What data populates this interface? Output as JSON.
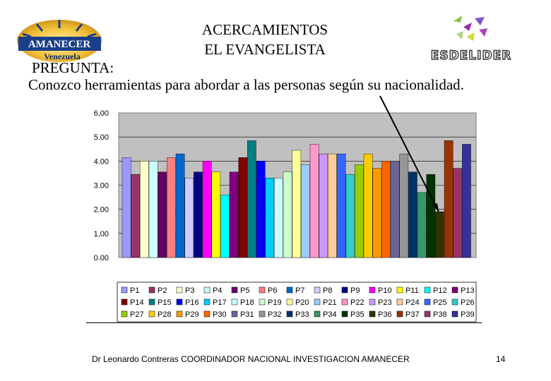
{
  "slide": {
    "title_line1": "ACERCAMIENTOS",
    "title_line2": "EL EVANGELISTA",
    "question_label": "PREGUNTA:",
    "question_text": "Conozco herramientas para abordar a las personas según su nacionalidad.",
    "footer_text": "Dr Leonardo Contreras COORDINADOR NACIONAL INVESTIGACION AMANECER",
    "page_number": "14"
  },
  "logos": {
    "left_text_main": "AMANECER",
    "left_text_sub": "Venezuela",
    "right_text": "ESDELIDER"
  },
  "chart_data": {
    "type": "bar",
    "title": "",
    "xlabel": "",
    "ylabel": "",
    "ylim": [
      0,
      6
    ],
    "y_ticks": [
      "0.00",
      "1,00",
      "2.00",
      "3.00",
      "4.00",
      "5.00",
      "6,00"
    ],
    "grid": true,
    "legend_position": "bottom",
    "series": [
      {
        "name": "P1",
        "value": 4.15,
        "color": "#9999ff"
      },
      {
        "name": "P2",
        "value": 3.45,
        "color": "#993366"
      },
      {
        "name": "P3",
        "value": 4.0,
        "color": "#ffffcc"
      },
      {
        "name": "P4",
        "value": 4.0,
        "color": "#ccffff"
      },
      {
        "name": "P5",
        "value": 3.55,
        "color": "#660066"
      },
      {
        "name": "P6",
        "value": 4.15,
        "color": "#ff8080"
      },
      {
        "name": "P7",
        "value": 4.3,
        "color": "#0066cc"
      },
      {
        "name": "P8",
        "value": 3.3,
        "color": "#ccccff"
      },
      {
        "name": "P9",
        "value": 3.55,
        "color": "#000080"
      },
      {
        "name": "P10",
        "value": 4.0,
        "color": "#ff00ff"
      },
      {
        "name": "P11",
        "value": 3.55,
        "color": "#ffff00"
      },
      {
        "name": "P12",
        "value": 2.6,
        "color": "#00ffff"
      },
      {
        "name": "P13",
        "value": 3.55,
        "color": "#800080"
      },
      {
        "name": "P14",
        "value": 4.15,
        "color": "#800000"
      },
      {
        "name": "P15",
        "value": 4.85,
        "color": "#008080"
      },
      {
        "name": "P16",
        "value": 4.0,
        "color": "#0000ff"
      },
      {
        "name": "P17",
        "value": 3.3,
        "color": "#00ccff"
      },
      {
        "name": "P18",
        "value": 3.3,
        "color": "#ccffff"
      },
      {
        "name": "P19",
        "value": 3.55,
        "color": "#ccffcc"
      },
      {
        "name": "P20",
        "value": 4.45,
        "color": "#ffff99"
      },
      {
        "name": "P21",
        "value": 3.85,
        "color": "#99ccff"
      },
      {
        "name": "P22",
        "value": 4.7,
        "color": "#ff99cc"
      },
      {
        "name": "P23",
        "value": 4.3,
        "color": "#cc99ff"
      },
      {
        "name": "P24",
        "value": 4.3,
        "color": "#ffcc99"
      },
      {
        "name": "P25",
        "value": 4.3,
        "color": "#3366ff"
      },
      {
        "name": "P26",
        "value": 3.45,
        "color": "#33cccc"
      },
      {
        "name": "P27",
        "value": 3.85,
        "color": "#99cc00"
      },
      {
        "name": "P28",
        "value": 4.3,
        "color": "#ffcc00"
      },
      {
        "name": "P29",
        "value": 3.7,
        "color": "#ff9900"
      },
      {
        "name": "P30",
        "value": 4.0,
        "color": "#ff6600"
      },
      {
        "name": "P31",
        "value": 4.0,
        "color": "#666699"
      },
      {
        "name": "P32",
        "value": 4.3,
        "color": "#969696"
      },
      {
        "name": "P33",
        "value": 3.55,
        "color": "#003366"
      },
      {
        "name": "P34",
        "value": 2.7,
        "color": "#339966"
      },
      {
        "name": "P35",
        "value": 3.45,
        "color": "#003300"
      },
      {
        "name": "P36",
        "value": 1.9,
        "color": "#333300"
      },
      {
        "name": "P37",
        "value": 4.85,
        "color": "#993300"
      },
      {
        "name": "P38",
        "value": 3.7,
        "color": "#993366"
      },
      {
        "name": "P39",
        "value": 4.7,
        "color": "#333399"
      }
    ]
  }
}
